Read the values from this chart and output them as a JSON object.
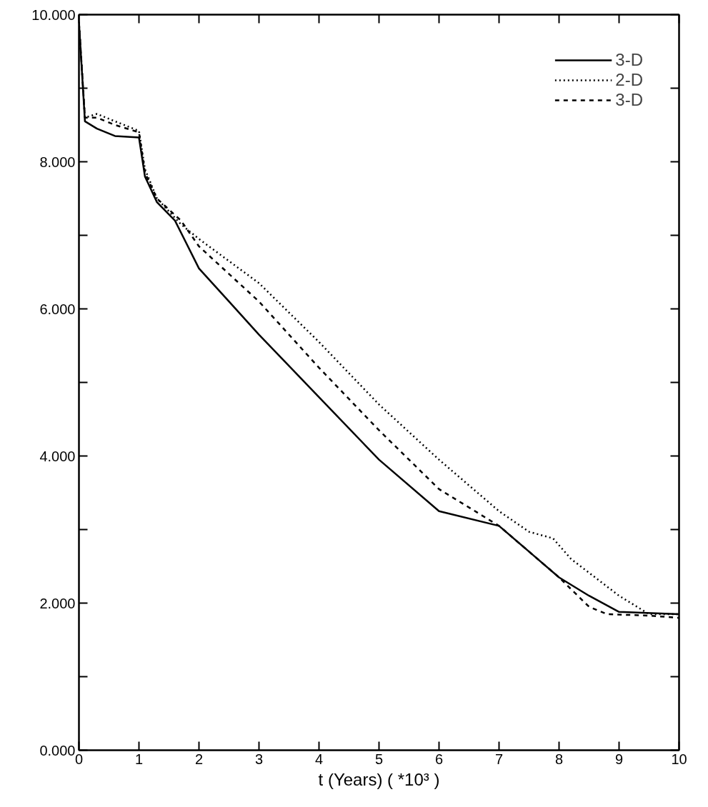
{
  "chart_data": {
    "type": "line",
    "xlabel": "t (Years) ( *10³ )",
    "xlim": [
      0,
      10
    ],
    "ylim": [
      0,
      10
    ],
    "xticks": [
      0,
      1,
      2,
      3,
      4,
      5,
      6,
      7,
      8,
      9,
      10
    ],
    "yticks": [
      {
        "value": 0,
        "label": "0.000"
      },
      {
        "value": 1,
        "label": null
      },
      {
        "value": 2,
        "label": "2.000"
      },
      {
        "value": 3,
        "label": null
      },
      {
        "value": 4,
        "label": "4.000"
      },
      {
        "value": 5,
        "label": null
      },
      {
        "value": 6,
        "label": "6.000"
      },
      {
        "value": 7,
        "label": null
      },
      {
        "value": 8,
        "label": "8.000"
      },
      {
        "value": 9,
        "label": null
      },
      {
        "value": 10,
        "label": "10.000"
      }
    ],
    "grid": false,
    "legend": "top right",
    "marker": "none",
    "series": [
      {
        "name": "3-D",
        "color": "#000000",
        "line_style": "solid",
        "x": [
          0,
          0.1,
          0.3,
          0.6,
          1.0,
          1.1,
          1.3,
          1.6,
          2.0,
          2.5,
          3,
          4,
          5,
          6,
          7,
          7.5,
          8,
          8.5,
          9,
          10
        ],
        "values": [
          9.9,
          8.55,
          8.45,
          8.35,
          8.33,
          7.8,
          7.45,
          7.2,
          6.55,
          6.1,
          5.65,
          4.8,
          3.95,
          3.25,
          3.05,
          2.7,
          2.35,
          2.1,
          1.88,
          1.85
        ]
      },
      {
        "name": "2-D",
        "color": "#000000",
        "line_style": "dotted",
        "x": [
          0,
          0.1,
          0.3,
          0.6,
          1.0,
          1.1,
          1.3,
          1.7,
          2,
          3,
          4,
          5,
          6,
          7,
          7.5,
          7.9,
          8.2,
          9,
          9.5,
          10
        ],
        "values": [
          9.9,
          8.6,
          8.65,
          8.55,
          8.42,
          7.9,
          7.5,
          7.15,
          6.95,
          6.35,
          5.55,
          4.7,
          3.95,
          3.25,
          2.97,
          2.88,
          2.6,
          2.1,
          1.85,
          1.85
        ]
      },
      {
        "name": "3-D",
        "color": "#000000",
        "line_style": "dashed",
        "x": [
          0,
          0.1,
          0.3,
          0.6,
          1.0,
          1.1,
          1.3,
          1.7,
          2,
          3,
          4,
          5,
          6,
          7,
          7.5,
          8,
          8.5,
          8.8,
          9.5,
          10
        ],
        "values": [
          9.9,
          8.6,
          8.6,
          8.5,
          8.4,
          7.85,
          7.5,
          7.2,
          6.85,
          6.1,
          5.2,
          4.35,
          3.55,
          3.05,
          2.7,
          2.35,
          1.95,
          1.85,
          1.83,
          1.8
        ]
      }
    ]
  }
}
